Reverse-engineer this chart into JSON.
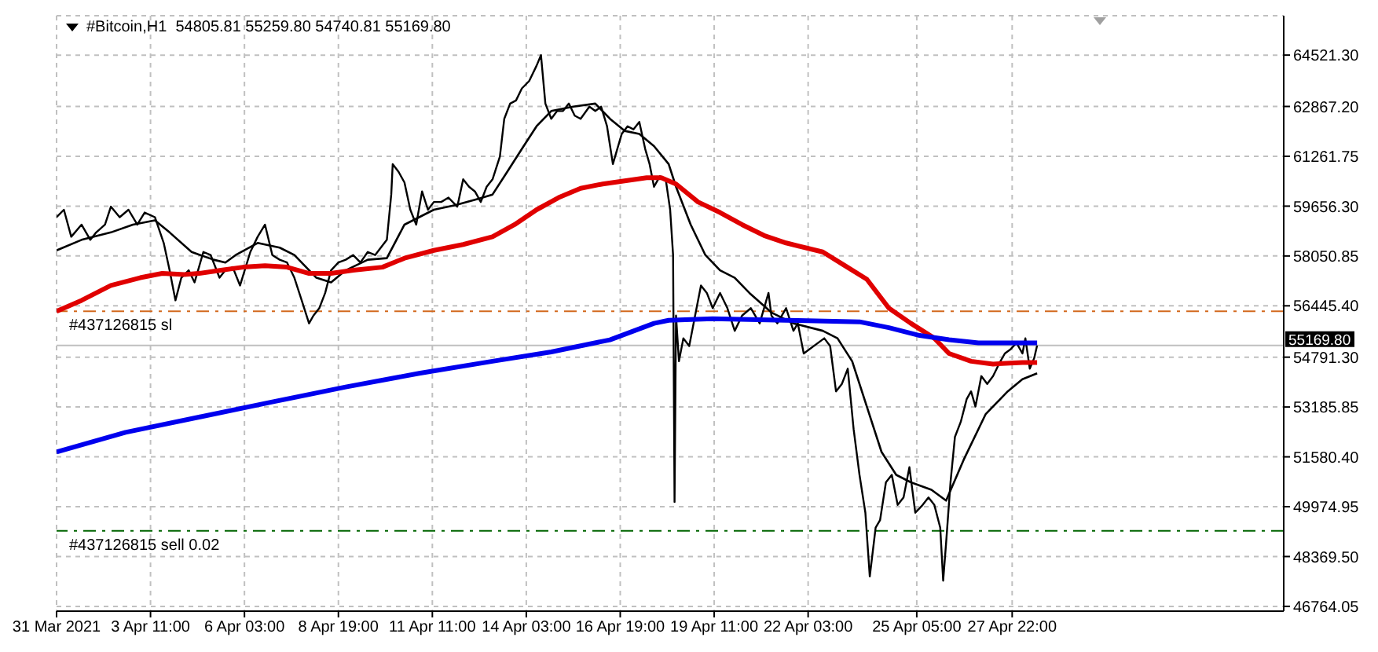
{
  "chart_data": {
    "type": "line",
    "title": "#Bitcoin,H1  54805.81 55259.80 54740.81 55169.80",
    "marker": "none",
    "line_style": "solid",
    "grid": true,
    "xlim": [
      "2021-03-31T19:00",
      "2021-05-05T15:00"
    ],
    "xticks": [
      {
        "value": "2021-03-31T19:00",
        "label": "31 Mar 2021"
      },
      {
        "value": "2021-04-03T11:00",
        "label": "3 Apr 11:00"
      },
      {
        "value": "2021-04-06T03:00",
        "label": "6 Apr 03:00"
      },
      {
        "value": "2021-04-08T19:00",
        "label": "8 Apr 19:00"
      },
      {
        "value": "2021-04-11T11:00",
        "label": "11 Apr 11:00"
      },
      {
        "value": "2021-04-14T03:00",
        "label": "14 Apr 03:00"
      },
      {
        "value": "2021-04-16T19:00",
        "label": "16 Apr 19:00"
      },
      {
        "value": "2021-04-19T11:00",
        "label": "19 Apr 11:00"
      },
      {
        "value": "2021-04-22T03:00",
        "label": "22 Apr 03:00"
      },
      {
        "value": "2021-04-25T05:00",
        "label": "25 Apr 05:00"
      },
      {
        "value": "2021-04-27T22:00",
        "label": "27 Apr 22:00"
      }
    ],
    "ylim": [
      46610,
      65790
    ],
    "yticks": [
      {
        "value": 46764.05,
        "label": "46764.05"
      },
      {
        "value": 48369.5,
        "label": "48369.50"
      },
      {
        "value": 49974.95,
        "label": "49974.95"
      },
      {
        "value": 51580.4,
        "label": "51580.40"
      },
      {
        "value": 53185.85,
        "label": "53185.85"
      },
      {
        "value": 54791.3,
        "label": "54791.30"
      },
      {
        "value": 56445.4,
        "label": "56445.40"
      },
      {
        "value": 58050.85,
        "label": "58050.85"
      },
      {
        "value": 59656.3,
        "label": "59656.30"
      },
      {
        "value": 61261.75,
        "label": "61261.75"
      },
      {
        "value": 62867.2,
        "label": "62867.20"
      },
      {
        "value": 64521.3,
        "label": "64521.30"
      }
    ],
    "series": [
      {
        "color": "#000000",
        "x": [
          "2021-03-31T19:00",
          "2021-04-01T00:00",
          "2021-04-01T05:00",
          "2021-04-01T12:00",
          "2021-04-01T18:00",
          "2021-04-01T22:00",
          "2021-04-02T04:00",
          "2021-04-02T08:00",
          "2021-04-02T14:00",
          "2021-04-02T20:00",
          "2021-04-03T02:00",
          "2021-04-03T07:00",
          "2021-04-03T14:00",
          "2021-04-03T20:00",
          "2021-04-04T00:00",
          "2021-04-04T04:00",
          "2021-04-04T08:00",
          "2021-04-04T13:00",
          "2021-04-04T17:00",
          "2021-04-04T23:00",
          "2021-04-05T04:00",
          "2021-04-05T10:00",
          "2021-04-05T14:00",
          "2021-04-05T19:00",
          "2021-04-06T00:00",
          "2021-04-06T07:00",
          "2021-04-06T12:00",
          "2021-04-06T17:00",
          "2021-04-06T22:00",
          "2021-04-07T03:00",
          "2021-04-07T08:00",
          "2021-04-07T13:00",
          "2021-04-07T18:00",
          "2021-04-07T23:00",
          "2021-04-08T02:00",
          "2021-04-08T06:00",
          "2021-04-08T10:00",
          "2021-04-08T14:00",
          "2021-04-08T19:00",
          "2021-04-09T00:00",
          "2021-04-09T05:00",
          "2021-04-09T10:00",
          "2021-04-09T15:00",
          "2021-04-09T20:00",
          "2021-04-10T04:00",
          "2021-04-10T07:00",
          "2021-04-10T08:00",
          "2021-04-10T12:00",
          "2021-04-10T16:00",
          "2021-04-10T20:00",
          "2021-04-11T00:00",
          "2021-04-11T04:00",
          "2021-04-11T08:00",
          "2021-04-11T12:00",
          "2021-04-11T17:00",
          "2021-04-11T22:00",
          "2021-04-12T04:00",
          "2021-04-12T08:00",
          "2021-04-12T12:00",
          "2021-04-12T16:00",
          "2021-04-12T20:00",
          "2021-04-13T00:00",
          "2021-04-13T04:00",
          "2021-04-13T09:00",
          "2021-04-13T12:00",
          "2021-04-13T16:00",
          "2021-04-13T20:00",
          "2021-04-14T00:00",
          "2021-04-14T05:00",
          "2021-04-14T10:00",
          "2021-04-14T13:00",
          "2021-04-14T16:00",
          "2021-04-14T20:00",
          "2021-04-15T00:00",
          "2021-04-15T04:00",
          "2021-04-15T08:00",
          "2021-04-15T12:00",
          "2021-04-15T16:00",
          "2021-04-15T22:00",
          "2021-04-16T02:00",
          "2021-04-16T06:00",
          "2021-04-16T10:00",
          "2021-04-16T14:00",
          "2021-04-16T17:00",
          "2021-04-16T20:00",
          "2021-04-17T00:00",
          "2021-04-17T04:00",
          "2021-04-17T08:00",
          "2021-04-17T12:00",
          "2021-04-17T15:00",
          "2021-04-17T18:00",
          "2021-04-17T22:00",
          "2021-04-18T02:00",
          "2021-04-18T05:00",
          "2021-04-18T07:00",
          "2021-04-18T08:00",
          "2021-04-18T09:00",
          "2021-04-18T11:00",
          "2021-04-18T14:00",
          "2021-04-18T18:00",
          "2021-04-18T22:00",
          "2021-04-19T02:00",
          "2021-04-19T06:00",
          "2021-04-19T10:00",
          "2021-04-19T15:00",
          "2021-04-19T20:00",
          "2021-04-20T01:00",
          "2021-04-20T06:00",
          "2021-04-20T12:00",
          "2021-04-20T18:00",
          "2021-04-21T00:00",
          "2021-04-21T02:00",
          "2021-04-21T06:00",
          "2021-04-21T12:00",
          "2021-04-21T17:00",
          "2021-04-21T20:00",
          "2021-04-22T00:00",
          "2021-04-22T14:00",
          "2021-04-22T18:00",
          "2021-04-22T22:00",
          "2021-04-23T02:00",
          "2021-04-23T06:00",
          "2021-04-23T10:00",
          "2021-04-23T14:00",
          "2021-04-23T18:00",
          "2021-04-23T21:00",
          "2021-04-24T01:00",
          "2021-04-24T04:00",
          "2021-04-24T08:00",
          "2021-04-24T12:00",
          "2021-04-24T16:00",
          "2021-04-24T20:00",
          "2021-04-25T00:00",
          "2021-04-25T04:00",
          "2021-04-25T09:00",
          "2021-04-25T13:00",
          "2021-04-25T17:00",
          "2021-04-25T21:00",
          "2021-04-25T23:00",
          "2021-04-26T01:00",
          "2021-04-26T04:00",
          "2021-04-26T07:00",
          "2021-04-26T11:00",
          "2021-04-26T15:00",
          "2021-04-26T18:00",
          "2021-04-26T21:00",
          "2021-04-27T01:00",
          "2021-04-27T05:00",
          "2021-04-27T09:00",
          "2021-04-27T13:00",
          "2021-04-27T17:00",
          "2021-04-27T21:00",
          "2021-04-28T01:00",
          "2021-04-28T05:00",
          "2021-04-28T07:00",
          "2021-04-28T10:00",
          "2021-04-28T13:00",
          "2021-04-28T15:00"
        ],
        "values": [
          59300,
          59540,
          58670,
          59060,
          58570,
          58810,
          59060,
          59640,
          59300,
          59540,
          59060,
          59450,
          59300,
          58470,
          57590,
          56620,
          57350,
          57590,
          57200,
          58180,
          58080,
          57350,
          57590,
          57690,
          57100,
          58180,
          58670,
          59060,
          58080,
          57930,
          57840,
          57350,
          56620,
          55880,
          56130,
          56370,
          56860,
          57590,
          57840,
          57930,
          58080,
          57840,
          58180,
          58080,
          58570,
          60030,
          61010,
          60760,
          60420,
          59540,
          59060,
          60130,
          59540,
          59790,
          59790,
          59930,
          59640,
          60520,
          60280,
          60130,
          59790,
          60280,
          60520,
          61250,
          62470,
          62960,
          63060,
          63450,
          63690,
          64180,
          64520,
          62960,
          62470,
          62720,
          62720,
          62960,
          62570,
          62470,
          62860,
          62720,
          62860,
          62230,
          61010,
          61500,
          61980,
          62230,
          62130,
          62370,
          61500,
          61010,
          60280,
          60620,
          60520,
          59540,
          58080,
          50130,
          56130,
          54660,
          55400,
          55150,
          56130,
          57100,
          56860,
          56370,
          56860,
          56370,
          55640,
          56130,
          56370,
          55880,
          56860,
          56130,
          55880,
          56370,
          55640,
          55880,
          54910,
          55400,
          55150,
          53690,
          53930,
          54420,
          52470,
          51000,
          49780,
          47730,
          49300,
          49540,
          50760,
          51000,
          50030,
          50270,
          51250,
          49780,
          50030,
          50270,
          50030,
          49300,
          47590,
          48810,
          50760,
          52220,
          52710,
          53440,
          53690,
          53200,
          54180,
          53930,
          54180,
          54570,
          54910,
          55050,
          55250,
          54910,
          55400,
          54420,
          54760,
          55170
        ]
      },
      {
        "color": "#000000",
        "x": [
          "2021-03-31T19:00",
          "2021-04-01T12:00",
          "2021-04-02T08:00",
          "2021-04-02T23:00",
          "2021-04-03T14:00",
          "2021-04-04T00:00",
          "2021-04-04T15:00",
          "2021-04-05T06:00",
          "2021-04-05T14:00",
          "2021-04-05T21:00",
          "2021-04-06T12:00",
          "2021-04-07T03:00",
          "2021-04-07T13:00",
          "2021-04-08T04:00",
          "2021-04-08T14:00",
          "2021-04-09T00:00",
          "2021-04-09T15:00",
          "2021-04-10T04:00",
          "2021-04-10T16:00",
          "2021-04-11T02:00",
          "2021-04-11T12:00",
          "2021-04-12T03:00",
          "2021-04-12T18:00",
          "2021-04-13T04:00",
          "2021-04-13T14:00",
          "2021-04-14T00:00",
          "2021-04-14T10:00",
          "2021-04-14T20:00",
          "2021-04-15T11:00",
          "2021-04-16T02:00",
          "2021-04-16T12:00",
          "2021-04-16T22:00",
          "2021-04-17T08:00",
          "2021-04-17T18:00",
          "2021-04-18T04:00",
          "2021-04-18T09:00",
          "2021-04-18T19:00",
          "2021-04-19T05:00",
          "2021-04-19T15:00",
          "2021-04-20T01:00",
          "2021-04-20T11:00",
          "2021-04-21T02:00",
          "2021-04-21T17:00",
          "2021-04-22T13:00",
          "2021-04-22T23:00",
          "2021-04-23T09:00",
          "2021-04-23T19:00",
          "2021-04-24T05:00",
          "2021-04-24T15:00",
          "2021-04-25T01:00",
          "2021-04-25T15:00",
          "2021-04-26T01:00",
          "2021-04-26T13:00",
          "2021-04-27T04:00",
          "2021-04-27T19:00",
          "2021-04-28T05:00",
          "2021-04-28T15:00"
        ],
        "values": [
          58230,
          58570,
          58810,
          59060,
          59200,
          58810,
          58180,
          57930,
          57840,
          58080,
          58470,
          58320,
          58080,
          57350,
          57200,
          57590,
          57930,
          57980,
          59060,
          59300,
          59540,
          59690,
          59890,
          60030,
          60760,
          61500,
          62230,
          62720,
          62860,
          62960,
          62470,
          62080,
          61980,
          61590,
          61010,
          60280,
          59060,
          58080,
          57590,
          57350,
          56860,
          56230,
          55880,
          55640,
          55400,
          54660,
          53200,
          51740,
          51000,
          50760,
          50520,
          50170,
          51490,
          52960,
          53690,
          54080,
          54270
        ]
      },
      {
        "color": "#e00000",
        "x": [
          "2021-03-31T19:00",
          "2021-04-01T12:00",
          "2021-04-02T08:00",
          "2021-04-03T04:00",
          "2021-04-03T19:00",
          "2021-04-04T10:00",
          "2021-04-04T20:00",
          "2021-04-05T11:00",
          "2021-04-06T02:00",
          "2021-04-06T17:00",
          "2021-04-07T08:00",
          "2021-04-07T23:00",
          "2021-04-08T14:00",
          "2021-04-09T05:00",
          "2021-04-10T01:00",
          "2021-04-10T16:00",
          "2021-04-11T12:00",
          "2021-04-12T08:00",
          "2021-04-13T04:00",
          "2021-04-13T19:00",
          "2021-04-14T10:00",
          "2021-04-15T01:00",
          "2021-04-15T16:00",
          "2021-04-16T07:00",
          "2021-04-16T22:00",
          "2021-04-17T13:00",
          "2021-04-17T23:00",
          "2021-04-18T09:00",
          "2021-04-19T00:00",
          "2021-04-19T15:00",
          "2021-04-20T06:00",
          "2021-04-20T21:00",
          "2021-04-21T12:00",
          "2021-04-22T13:00",
          "2021-04-23T04:00",
          "2021-04-23T19:00",
          "2021-04-24T10:00",
          "2021-04-25T01:00",
          "2021-04-25T17:00",
          "2021-04-26T03:00",
          "2021-04-26T18:00",
          "2021-04-27T09:00",
          "2021-04-28T05:00",
          "2021-04-28T15:00"
        ],
        "values": [
          56270,
          56620,
          57100,
          57350,
          57490,
          57450,
          57490,
          57590,
          57690,
          57740,
          57690,
          57490,
          57490,
          57590,
          57690,
          57980,
          58230,
          58420,
          58670,
          59060,
          59540,
          59930,
          60230,
          60370,
          60470,
          60570,
          60570,
          60370,
          59790,
          59450,
          59060,
          58710,
          58470,
          58180,
          57740,
          57300,
          56370,
          55880,
          55400,
          54910,
          54660,
          54570,
          54620,
          54620
        ]
      },
      {
        "color": "#0000ee",
        "x": [
          "2021-03-31T19:00",
          "2021-04-02T18:00",
          "2021-04-04T20:00",
          "2021-04-06T22:00",
          "2021-04-09T00:00",
          "2021-04-11T02:00",
          "2021-04-13T04:00",
          "2021-04-14T20:00",
          "2021-04-16T12:00",
          "2021-04-17T18:00",
          "2021-04-18T04:00",
          "2021-04-19T10:00",
          "2021-04-21T12:00",
          "2021-04-23T14:00",
          "2021-04-24T10:00",
          "2021-04-25T07:00",
          "2021-04-26T03:00",
          "2021-04-26T23:00",
          "2021-04-28T15:00"
        ],
        "values": [
          51740,
          52370,
          52860,
          53350,
          53830,
          54270,
          54660,
          54960,
          55350,
          55880,
          55980,
          56030,
          55980,
          55930,
          55740,
          55490,
          55350,
          55250,
          55250
        ]
      }
    ],
    "ref_lines": [
      {
        "axis": "y",
        "value": 56270,
        "label": "#437126815 sl",
        "color": "#d2691e",
        "line_style": "dashed"
      },
      {
        "axis": "y",
        "value": 49200,
        "label": "#437126815 sell 0.02",
        "color": "#006400",
        "line_style": "dashed"
      },
      {
        "axis": "y",
        "value": 55169.8,
        "label": "55169.80",
        "color": "#c0c0c0",
        "line_style": "solid"
      }
    ]
  }
}
